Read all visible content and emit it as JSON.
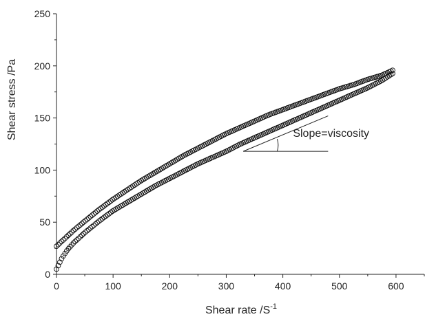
{
  "chart_data": {
    "type": "scatter",
    "title": "",
    "xlabel": "Shear rate /S",
    "xlabel_superscript": "-1",
    "ylabel": "Shear stress /Pa",
    "xlim": [
      0,
      650
    ],
    "ylim": [
      0,
      250
    ],
    "x_ticks": [
      0,
      100,
      200,
      300,
      400,
      500,
      600
    ],
    "y_ticks": [
      0,
      50,
      100,
      150,
      200,
      250
    ],
    "x_tick_labels": [
      "0",
      "100",
      "200",
      "300",
      "400",
      "500",
      "600"
    ],
    "y_tick_labels": [
      "0",
      "50",
      "100",
      "150",
      "200",
      "250"
    ],
    "grid": false,
    "legend": "none",
    "marker": "open-circle",
    "series": [
      {
        "role": "upper curve",
        "x": [
          0,
          10,
          20,
          30,
          50,
          75,
          100,
          125,
          150,
          175,
          200,
          225,
          250,
          275,
          300,
          325,
          350,
          375,
          400,
          425,
          450,
          475,
          500,
          525,
          550,
          575,
          595
        ],
        "y": [
          27,
          32,
          37,
          42,
          51,
          62,
          72,
          81,
          90,
          98,
          106,
          114,
          121,
          128,
          135,
          141,
          147,
          153,
          158,
          163,
          168,
          173,
          178,
          182,
          187,
          191,
          196
        ]
      },
      {
        "role": "lower curve",
        "x": [
          0,
          10,
          20,
          30,
          50,
          75,
          100,
          125,
          150,
          175,
          200,
          225,
          250,
          275,
          300,
          325,
          350,
          375,
          400,
          425,
          450,
          475,
          500,
          525,
          550,
          575,
          595
        ],
        "y": [
          5,
          16,
          24,
          30,
          40,
          51,
          61,
          69,
          77,
          85,
          92,
          99,
          106,
          112,
          118,
          125,
          131,
          137,
          143,
          149,
          155,
          161,
          167,
          173,
          179,
          186,
          193
        ]
      }
    ],
    "annotation": {
      "text": "Slope=viscosity",
      "text_anchor_data": [
        480,
        132
      ],
      "line_from": [
        330,
        118
      ],
      "line_to": [
        480,
        152
      ],
      "baseline_from": [
        330,
        118
      ],
      "baseline_to": [
        480,
        118
      ]
    }
  }
}
